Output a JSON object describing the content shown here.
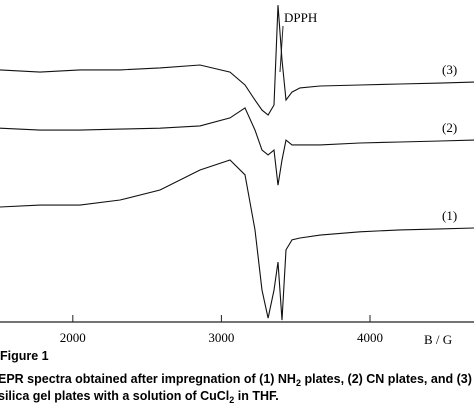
{
  "chart_data": {
    "type": "line",
    "x_label": "B / G",
    "annotation": "DPPH",
    "xlim": [
      1510,
      4700
    ],
    "xticks": [
      2000,
      3000,
      4000
    ],
    "ylim": [
      0,
      100
    ],
    "x": [
      1510,
      1779,
      2048,
      2318,
      2587,
      2856,
      3058,
      3159,
      3226,
      3273,
      3314,
      3354,
      3381,
      3408,
      3435,
      3475,
      3529,
      3664,
      3933,
      4202,
      4471,
      4700
    ],
    "series": [
      {
        "name": "(3)",
        "color": "#111111",
        "values": [
          78.3,
          77.6,
          78.3,
          78.3,
          78.9,
          79.8,
          77.6,
          73.6,
          68.9,
          65.8,
          64.3,
          67.4,
          98.4,
          81.4,
          68.9,
          71.4,
          72.7,
          73.3,
          73.6,
          73.9,
          74.2,
          74.5
        ]
      },
      {
        "name": "(2)",
        "color": "#111111",
        "values": [
          60.2,
          59.6,
          59.6,
          59.9,
          60.2,
          60.9,
          63.4,
          66.5,
          59.6,
          53.4,
          51.9,
          53.4,
          42.5,
          50.3,
          56.5,
          55.0,
          55.0,
          55.0,
          55.6,
          55.9,
          56.2,
          56.5
        ]
      },
      {
        "name": "(1)",
        "color": "#111111",
        "values": [
          35.7,
          36.3,
          36.3,
          37.9,
          41.0,
          47.2,
          50.3,
          45.7,
          28.6,
          9.9,
          1.2,
          9.9,
          18.6,
          0.6,
          22.4,
          25.5,
          26.1,
          27.0,
          28.0,
          28.6,
          28.9,
          29.2
        ]
      }
    ]
  },
  "caption": {
    "label": "Figure 1",
    "line1": [
      "EPR spectra obtained after impregnation of (1) NH",
      "2",
      " plates, (2) CN plates, and (3)"
    ],
    "line2": [
      "silica gel plates with a solution of CuCl",
      "2",
      " in THF."
    ]
  }
}
